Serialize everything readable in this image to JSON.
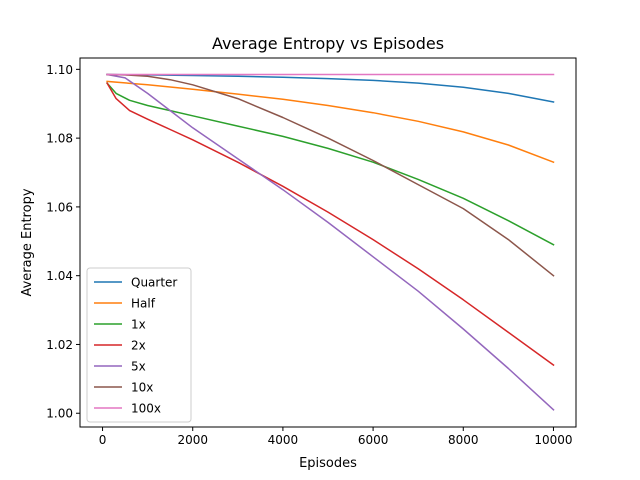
{
  "chart_data": {
    "type": "line",
    "title": "Average Entropy vs Episodes",
    "xlabel": "Episodes",
    "ylabel": "Average Entropy",
    "xlim": [
      -500,
      10500
    ],
    "ylim": [
      0.996,
      1.1033
    ],
    "xticks": [
      0,
      2000,
      4000,
      6000,
      8000,
      10000
    ],
    "xtick_labels": [
      "0",
      "2000",
      "4000",
      "6000",
      "8000",
      "10000"
    ],
    "yticks": [
      1.0,
      1.02,
      1.04,
      1.06,
      1.08,
      1.1
    ],
    "ytick_labels": [
      "1.00",
      "1.02",
      "1.04",
      "1.06",
      "1.08",
      "1.10"
    ],
    "grid": false,
    "legend_position": "lower-left",
    "series": [
      {
        "name": "Quarter",
        "color": "#1f77b4",
        "x": [
          100,
          1000,
          2000,
          3000,
          4000,
          5000,
          6000,
          7000,
          8000,
          9000,
          10000
        ],
        "y": [
          1.0985,
          1.0984,
          1.0982,
          1.098,
          1.0977,
          1.0973,
          1.0968,
          1.096,
          1.0948,
          1.093,
          1.0905
        ]
      },
      {
        "name": "Half",
        "color": "#ff7f0e",
        "x": [
          100,
          1000,
          2000,
          3000,
          4000,
          5000,
          6000,
          7000,
          8000,
          9000,
          10000
        ],
        "y": [
          1.0965,
          1.0955,
          1.0942,
          1.0928,
          1.0913,
          1.0895,
          1.0874,
          1.0849,
          1.0818,
          1.078,
          1.073
        ]
      },
      {
        "name": "1x",
        "color": "#2ca02c",
        "x": [
          100,
          300,
          600,
          1000,
          1500,
          2000,
          3000,
          4000,
          5000,
          6000,
          7000,
          8000,
          9000,
          10000
        ],
        "y": [
          1.096,
          1.093,
          1.091,
          1.0895,
          1.088,
          1.0865,
          1.0835,
          1.0805,
          1.077,
          1.073,
          1.068,
          1.0625,
          1.056,
          1.049
        ]
      },
      {
        "name": "2x",
        "color": "#d62728",
        "x": [
          100,
          300,
          600,
          1000,
          1500,
          2000,
          3000,
          4000,
          5000,
          6000,
          7000,
          8000,
          9000,
          10000
        ],
        "y": [
          1.096,
          1.0915,
          1.088,
          1.0855,
          1.0825,
          1.0795,
          1.073,
          1.066,
          1.0585,
          1.0505,
          1.042,
          1.033,
          1.0235,
          1.014
        ]
      },
      {
        "name": "5x",
        "color": "#9467bd",
        "x": [
          100,
          500,
          1000,
          1500,
          2000,
          3000,
          4000,
          5000,
          6000,
          7000,
          8000,
          9000,
          10000
        ],
        "y": [
          1.0985,
          1.0975,
          1.093,
          1.088,
          1.083,
          1.074,
          1.065,
          1.0555,
          1.0455,
          1.0355,
          1.0245,
          1.013,
          1.001
        ]
      },
      {
        "name": "10x",
        "color": "#8c564b",
        "x": [
          100,
          500,
          1000,
          1500,
          2000,
          3000,
          4000,
          5000,
          6000,
          7000,
          8000,
          9000,
          10000
        ],
        "y": [
          1.0985,
          1.0984,
          1.098,
          1.097,
          1.0955,
          1.0915,
          1.086,
          1.08,
          1.0735,
          1.0665,
          1.0595,
          1.0505,
          1.04
        ]
      },
      {
        "name": "100x",
        "color": "#e377c2",
        "x": [
          100,
          10000
        ],
        "y": [
          1.0985,
          1.0985
        ]
      }
    ]
  }
}
